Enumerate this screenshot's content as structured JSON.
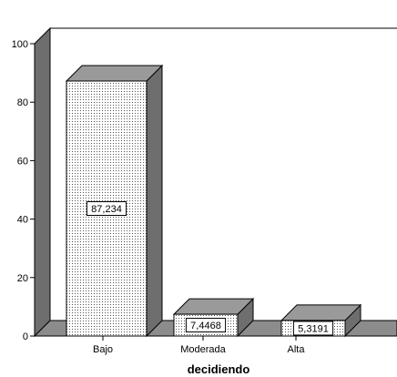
{
  "chart_data": {
    "type": "bar",
    "style": "3d",
    "categories": [
      "Bajo",
      "Moderada",
      "Alta"
    ],
    "values": [
      87.234,
      7.4468,
      5.3191
    ],
    "data_labels": [
      "87,234",
      "7,4468",
      "5,3191"
    ],
    "xlabel": "decidiendo",
    "ylabel": "",
    "ylim": [
      0,
      100
    ],
    "yticks": [
      0,
      20,
      40,
      60,
      80,
      100
    ],
    "ytick_labels": [
      "0",
      "20",
      "40",
      "60",
      "80",
      "100"
    ],
    "grid": false,
    "legend": "none",
    "colors": {
      "bar_front": "#ffffff",
      "bar_dots": "#555555",
      "bar_top": "#9a9a9a",
      "bar_side": "#6e6e6e",
      "floor": "#8c8c8c",
      "back_wall": "#ffffff",
      "side_wall": "#6e6e6e",
      "outline": "#000000"
    }
  }
}
